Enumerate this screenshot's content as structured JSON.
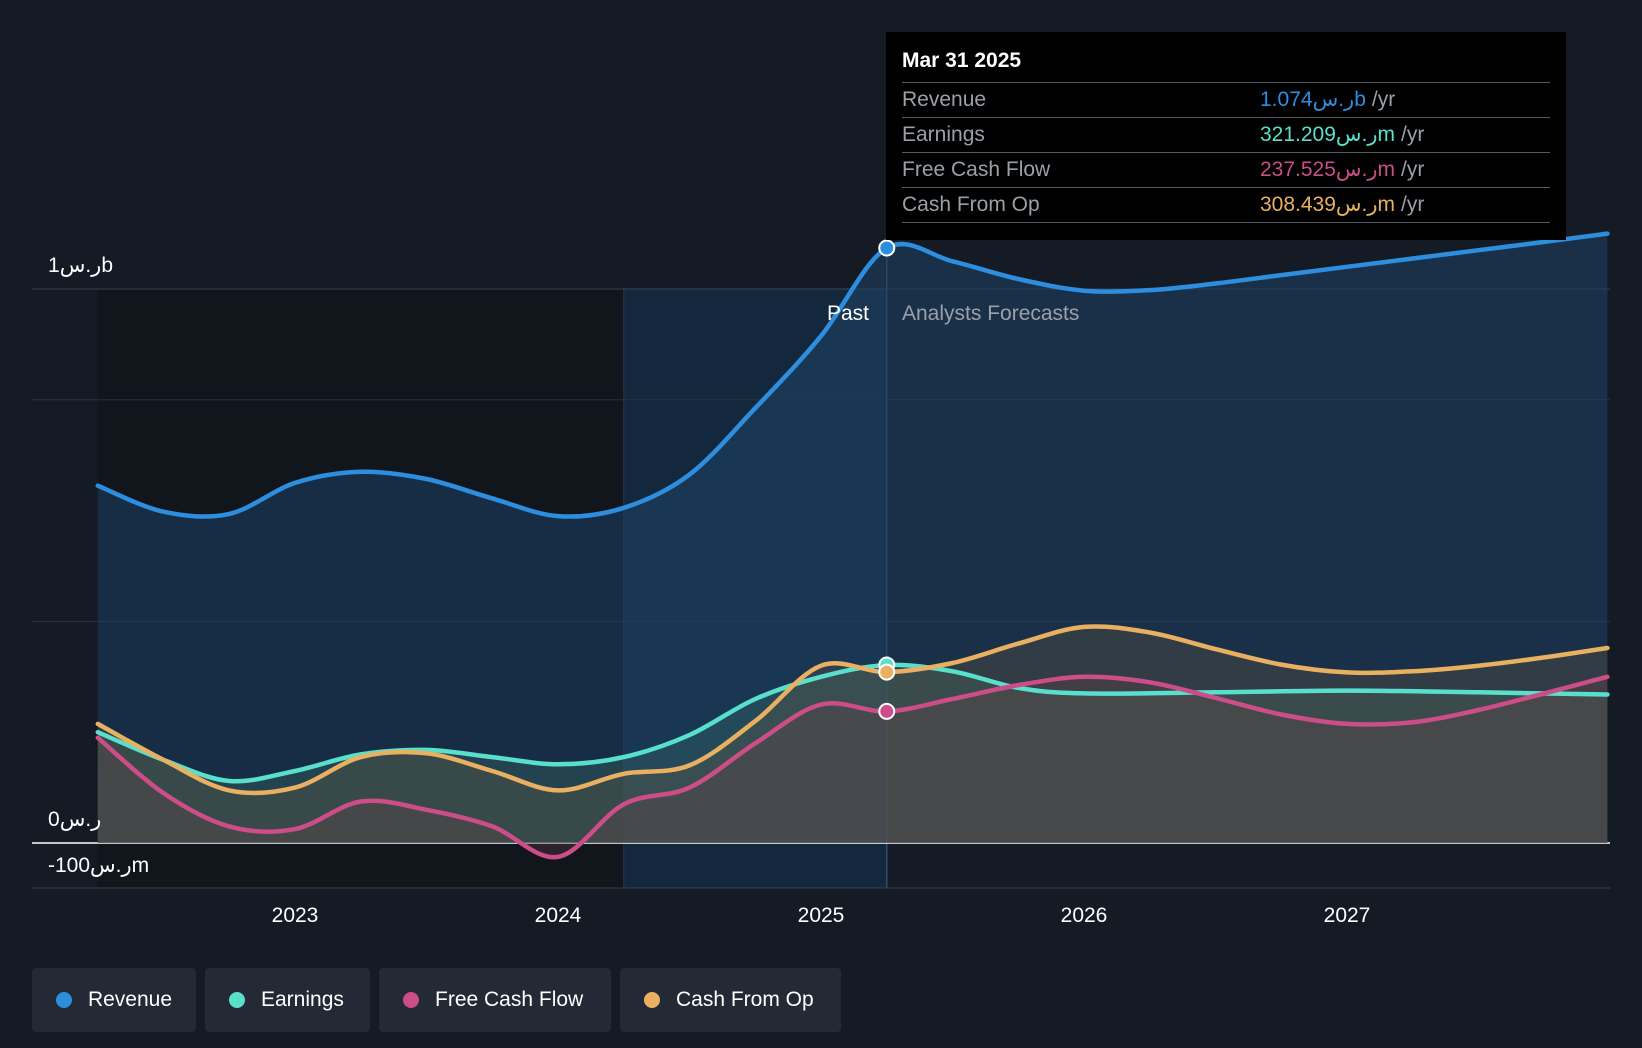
{
  "colors": {
    "revenue": "#2d8ee0",
    "earnings": "#58e0cc",
    "free_cash_flow": "#cc4d88",
    "cash_from_op": "#e8b060",
    "background": "#151b24"
  },
  "chart_data": {
    "type": "area",
    "title": "",
    "xlabel": "",
    "ylabel": "",
    "x_ticks": [
      "2023",
      "2024",
      "2025",
      "2026",
      "2027"
    ],
    "x_range": [
      2022.25,
      2027.99
    ],
    "y_range_millions": [
      -100,
      1000
    ],
    "y_labels": {
      "top": "1ر.سb",
      "zero": "0ر.س",
      "bottom": "-100ر.سm"
    },
    "past_label": "Past",
    "forecast_label": "Analysts Forecasts",
    "past_end": 2025.25,
    "series": [
      {
        "name": "Revenue",
        "key": "revenue",
        "unit": "millions",
        "points": [
          [
            2022.25,
            645
          ],
          [
            2022.5,
            598
          ],
          [
            2022.75,
            594
          ],
          [
            2023.0,
            650
          ],
          [
            2023.25,
            670
          ],
          [
            2023.5,
            657
          ],
          [
            2023.75,
            622
          ],
          [
            2024.0,
            590
          ],
          [
            2024.25,
            605
          ],
          [
            2024.5,
            665
          ],
          [
            2024.75,
            785
          ],
          [
            2025.0,
            915
          ],
          [
            2025.25,
            1074
          ],
          [
            2025.5,
            1050
          ],
          [
            2025.75,
            1018
          ],
          [
            2026.0,
            997
          ],
          [
            2026.25,
            998
          ],
          [
            2026.5,
            1010
          ],
          [
            2026.75,
            1025
          ],
          [
            2027.0,
            1040
          ],
          [
            2027.25,
            1055
          ],
          [
            2027.5,
            1070
          ],
          [
            2027.75,
            1085
          ],
          [
            2027.99,
            1100
          ]
        ]
      },
      {
        "name": "Earnings",
        "key": "earnings",
        "unit": "millions",
        "points": [
          [
            2022.25,
            200
          ],
          [
            2022.5,
            150
          ],
          [
            2022.75,
            112
          ],
          [
            2023.0,
            130
          ],
          [
            2023.25,
            160
          ],
          [
            2023.5,
            168
          ],
          [
            2023.75,
            155
          ],
          [
            2024.0,
            142
          ],
          [
            2024.25,
            155
          ],
          [
            2024.5,
            195
          ],
          [
            2024.75,
            260
          ],
          [
            2025.0,
            300
          ],
          [
            2025.25,
            321.209
          ],
          [
            2025.5,
            310
          ],
          [
            2025.75,
            280
          ],
          [
            2026.0,
            270
          ],
          [
            2026.5,
            272
          ],
          [
            2027.0,
            275
          ],
          [
            2027.5,
            272
          ],
          [
            2027.99,
            268
          ]
        ]
      },
      {
        "name": "Free Cash Flow",
        "key": "free_cash_flow",
        "unit": "millions",
        "points": [
          [
            2022.25,
            190
          ],
          [
            2022.5,
            90
          ],
          [
            2022.75,
            30
          ],
          [
            2023.0,
            25
          ],
          [
            2023.25,
            75
          ],
          [
            2023.5,
            60
          ],
          [
            2023.75,
            30
          ],
          [
            2024.0,
            -25
          ],
          [
            2024.25,
            70
          ],
          [
            2024.5,
            100
          ],
          [
            2024.75,
            180
          ],
          [
            2025.0,
            250
          ],
          [
            2025.25,
            237.525
          ],
          [
            2025.5,
            260
          ],
          [
            2025.75,
            285
          ],
          [
            2026.0,
            300
          ],
          [
            2026.25,
            290
          ],
          [
            2026.5,
            262
          ],
          [
            2026.75,
            232
          ],
          [
            2027.0,
            215
          ],
          [
            2027.25,
            218
          ],
          [
            2027.5,
            240
          ],
          [
            2027.75,
            270
          ],
          [
            2027.99,
            300
          ]
        ]
      },
      {
        "name": "Cash From Op",
        "key": "cash_from_op",
        "unit": "millions",
        "points": [
          [
            2022.25,
            215
          ],
          [
            2022.5,
            150
          ],
          [
            2022.75,
            95
          ],
          [
            2023.0,
            100
          ],
          [
            2023.25,
            155
          ],
          [
            2023.5,
            162
          ],
          [
            2023.75,
            130
          ],
          [
            2024.0,
            95
          ],
          [
            2024.25,
            125
          ],
          [
            2024.5,
            140
          ],
          [
            2024.75,
            220
          ],
          [
            2025.0,
            320
          ],
          [
            2025.25,
            308.439
          ],
          [
            2025.5,
            325
          ],
          [
            2025.75,
            360
          ],
          [
            2026.0,
            390
          ],
          [
            2026.25,
            380
          ],
          [
            2026.5,
            350
          ],
          [
            2026.75,
            322
          ],
          [
            2027.0,
            308
          ],
          [
            2027.25,
            310
          ],
          [
            2027.5,
            320
          ],
          [
            2027.75,
            335
          ],
          [
            2027.99,
            352
          ]
        ]
      }
    ],
    "tooltip": {
      "date": "Mar 31 2025",
      "rows": [
        {
          "name": "Revenue",
          "value": "1.074ر.سb",
          "unit": "/yr"
        },
        {
          "name": "Earnings",
          "value": "321.209ر.سm",
          "unit": "/yr"
        },
        {
          "name": "Free Cash Flow",
          "value": "237.525ر.سm",
          "unit": "/yr"
        },
        {
          "name": "Cash From Op",
          "value": "308.439ر.سm",
          "unit": "/yr"
        }
      ]
    }
  },
  "legend": [
    {
      "label": "Revenue",
      "key": "revenue"
    },
    {
      "label": "Earnings",
      "key": "earnings"
    },
    {
      "label": "Free Cash Flow",
      "key": "free_cash_flow"
    },
    {
      "label": "Cash From Op",
      "key": "cash_from_op"
    }
  ]
}
